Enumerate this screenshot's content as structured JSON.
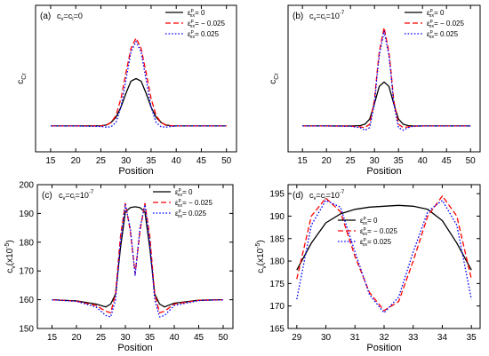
{
  "chart_data": [
    {
      "type": "line",
      "panel_label": "(a)",
      "condition": "c",
      "condition_parts": [
        {
          "t": "c"
        },
        {
          "t": "v",
          "sub": true
        },
        {
          "t": "=c"
        },
        {
          "t": "i",
          "sub": true
        },
        {
          "t": "=0"
        }
      ],
      "xlabel": "Position",
      "ylabel": "c",
      "ylabel_sub": "Cr",
      "xlim": [
        12,
        52
      ],
      "ylim": [
        0.1,
        0.95
      ],
      "xticks": [
        15,
        20,
        25,
        30,
        35,
        40,
        45,
        50
      ],
      "yticks": [],
      "legend_position": "top-right",
      "series": [
        {
          "legend": {
            "base": "ε",
            "sup": "p",
            "sub": "xx",
            "value": "= 0"
          },
          "color": "#000000",
          "dash": "solid",
          "x": [
            15,
            20,
            25,
            26,
            27,
            28,
            29,
            30,
            31,
            32,
            33,
            34,
            35,
            36,
            37,
            38,
            39,
            40,
            45,
            50
          ],
          "y": [
            0.25,
            0.25,
            0.251,
            0.255,
            0.27,
            0.3,
            0.36,
            0.44,
            0.51,
            0.525,
            0.51,
            0.44,
            0.36,
            0.3,
            0.27,
            0.255,
            0.251,
            0.25,
            0.25,
            0.25
          ]
        },
        {
          "legend": {
            "base": "ε",
            "sup": "p",
            "sub": "xx",
            "value": "= − 0.025"
          },
          "color": "#ff0000",
          "dash": "dashed",
          "x": [
            15,
            20,
            25,
            26,
            27,
            28,
            29,
            30,
            31,
            32,
            33,
            34,
            35,
            36,
            37,
            38,
            40,
            45,
            50
          ],
          "y": [
            0.25,
            0.25,
            0.25,
            0.253,
            0.27,
            0.31,
            0.41,
            0.56,
            0.7,
            0.76,
            0.7,
            0.56,
            0.41,
            0.31,
            0.27,
            0.253,
            0.25,
            0.25,
            0.25
          ]
        },
        {
          "legend": {
            "base": "ε",
            "sup": "p",
            "sub": "xx",
            "value": "= 0.025"
          },
          "color": "#0000ff",
          "dash": "dotted",
          "x": [
            15,
            20,
            25,
            26,
            27,
            28,
            29,
            30,
            31,
            32,
            33,
            34,
            35,
            36,
            37,
            38,
            39,
            40,
            45,
            50
          ],
          "y": [
            0.25,
            0.25,
            0.247,
            0.243,
            0.245,
            0.27,
            0.36,
            0.52,
            0.68,
            0.74,
            0.68,
            0.52,
            0.36,
            0.27,
            0.245,
            0.243,
            0.247,
            0.25,
            0.25,
            0.25
          ]
        }
      ]
    },
    {
      "type": "line",
      "panel_label": "(b)",
      "condition": "c",
      "condition_parts": [
        {
          "t": "c"
        },
        {
          "t": "v",
          "sub": true
        },
        {
          "t": "=c"
        },
        {
          "t": "i",
          "sub": true
        },
        {
          "t": "=10"
        },
        {
          "t": "-7",
          "sup": true
        }
      ],
      "xlabel": "Position",
      "ylabel": "c",
      "ylabel_sub": "Cr",
      "xlim": [
        12,
        52
      ],
      "ylim": [
        0.1,
        0.95
      ],
      "xticks": [
        15,
        20,
        25,
        30,
        35,
        40,
        45,
        50
      ],
      "yticks": [],
      "legend_position": "top-right",
      "series": [
        {
          "legend": {
            "base": "ε",
            "sup": "p",
            "sub": "xx",
            "value": "= 0"
          },
          "color": "#000000",
          "dash": "solid",
          "x": [
            15,
            20,
            25,
            27,
            28,
            29,
            30,
            31,
            32,
            33,
            34,
            35,
            36,
            37,
            38,
            40,
            45,
            50
          ],
          "y": [
            0.25,
            0.25,
            0.25,
            0.252,
            0.26,
            0.29,
            0.38,
            0.48,
            0.505,
            0.48,
            0.38,
            0.29,
            0.26,
            0.252,
            0.25,
            0.25,
            0.25,
            0.25
          ]
        },
        {
          "legend": {
            "base": "ε",
            "sup": "p",
            "sub": "xx",
            "value": "= − 0.025"
          },
          "color": "#ff0000",
          "dash": "dashed",
          "x": [
            15,
            20,
            25,
            27,
            28,
            29,
            30,
            30.5,
            31,
            32,
            33,
            33.5,
            34,
            35,
            36,
            37,
            38,
            40,
            45,
            50
          ],
          "y": [
            0.25,
            0.25,
            0.249,
            0.245,
            0.24,
            0.26,
            0.4,
            0.55,
            0.68,
            0.82,
            0.68,
            0.55,
            0.4,
            0.26,
            0.24,
            0.245,
            0.249,
            0.25,
            0.25,
            0.25
          ]
        },
        {
          "legend": {
            "base": "ε",
            "sup": "p",
            "sub": "xx",
            "value": "= 0.025"
          },
          "color": "#0000ff",
          "dash": "dotted",
          "x": [
            15,
            20,
            25,
            27,
            28,
            29,
            30,
            30.5,
            31,
            32,
            33,
            33.5,
            34,
            35,
            36,
            37,
            38,
            40,
            45,
            50
          ],
          "y": [
            0.25,
            0.25,
            0.248,
            0.24,
            0.225,
            0.24,
            0.38,
            0.53,
            0.66,
            0.8,
            0.66,
            0.53,
            0.38,
            0.24,
            0.225,
            0.24,
            0.248,
            0.25,
            0.25,
            0.25
          ]
        }
      ]
    },
    {
      "type": "line",
      "panel_label": "(c)",
      "condition": "c",
      "condition_parts": [
        {
          "t": "c"
        },
        {
          "t": "v",
          "sub": true
        },
        {
          "t": "=c"
        },
        {
          "t": "i",
          "sub": true
        },
        {
          "t": "=10"
        },
        {
          "t": "-7",
          "sup": true
        }
      ],
      "xlabel": "Position",
      "ylabel": "c",
      "ylabel_sub": "v",
      "ylabel_unit": "(x10",
      "ylabel_unit_sup": "-5",
      "ylabel_unit_end": ")",
      "xlim": [
        12,
        52
      ],
      "ylim": [
        150,
        200
      ],
      "xticks": [
        15,
        20,
        25,
        30,
        35,
        40,
        45,
        50
      ],
      "yticks": [
        150,
        160,
        170,
        180,
        190,
        200
      ],
      "legend_position": "top-right",
      "series": [
        {
          "legend": {
            "base": "ε",
            "sup": "p",
            "sub": "xx",
            "value": "= 0"
          },
          "color": "#000000",
          "dash": "solid",
          "x": [
            15,
            20,
            24,
            26,
            27,
            28,
            29,
            30,
            31,
            32,
            33,
            34,
            35,
            36,
            37,
            38,
            40,
            45,
            50
          ],
          "y": [
            160,
            159.6,
            158.5,
            157.5,
            158.5,
            162,
            178,
            190.5,
            192,
            192.3,
            192,
            190.5,
            178,
            162,
            158.5,
            157.5,
            158.8,
            159.8,
            160
          ]
        },
        {
          "legend": {
            "base": "ε",
            "sup": "p",
            "sub": "xx",
            "value": "= − 0.025"
          },
          "color": "#ff0000",
          "dash": "dashed",
          "x": [
            15,
            20,
            24,
            26,
            27,
            28,
            29,
            30,
            31,
            32,
            33,
            34,
            35,
            36,
            37,
            38,
            40,
            45,
            50
          ],
          "y": [
            160,
            159.5,
            158,
            156,
            155.5,
            162,
            182,
            193.5,
            184,
            169,
            184,
            193.5,
            182,
            162,
            155.5,
            156,
            158.5,
            159.8,
            160
          ]
        },
        {
          "legend": {
            "base": "ε",
            "sup": "p",
            "sub": "xx",
            "value": "= 0.025"
          },
          "color": "#0000ff",
          "dash": "dotted",
          "x": [
            15,
            20,
            24,
            26,
            27,
            28,
            29,
            30,
            31,
            32,
            33,
            34,
            35,
            36,
            37,
            38,
            40,
            45,
            50
          ],
          "y": [
            160,
            159.4,
            157.5,
            154.5,
            154,
            160,
            180,
            193,
            185,
            168.5,
            185,
            193,
            180,
            160,
            154,
            154.5,
            158,
            159.7,
            160
          ]
        }
      ]
    },
    {
      "type": "line",
      "panel_label": "(d)",
      "condition": "c",
      "condition_parts": [
        {
          "t": "c"
        },
        {
          "t": "v",
          "sub": true
        },
        {
          "t": "=c"
        },
        {
          "t": "i",
          "sub": true
        },
        {
          "t": "=10"
        },
        {
          "t": "-7",
          "sup": true
        }
      ],
      "xlabel": "Position",
      "ylabel": "c",
      "ylabel_sub": "v",
      "ylabel_unit": "(x10",
      "ylabel_unit_sup": "-5",
      "ylabel_unit_end": ")",
      "xlim": [
        28.7,
        35.3
      ],
      "ylim": [
        165,
        197
      ],
      "xticks": [
        29,
        30,
        31,
        32,
        33,
        34,
        35
      ],
      "yticks": [
        165,
        170,
        175,
        180,
        185,
        190,
        195
      ],
      "legend_position": "top-center",
      "series": [
        {
          "legend": {
            "base": "ε",
            "sup": "p",
            "sub": "xx",
            "value": "= 0"
          },
          "color": "#000000",
          "dash": "solid",
          "x": [
            29,
            29.5,
            30,
            30.5,
            31,
            31.5,
            32,
            32.5,
            33,
            33.5,
            34,
            34.5,
            35
          ],
          "y": [
            178,
            184,
            188.5,
            190.5,
            191.5,
            192,
            192.2,
            192.4,
            192.2,
            191.5,
            189,
            184,
            178
          ]
        },
        {
          "legend": {
            "base": "ε",
            "sup": "p",
            "sub": "xx",
            "value": "= − 0.025"
          },
          "color": "#ff0000",
          "dash": "dashed",
          "x": [
            29,
            29.5,
            30,
            30.5,
            31,
            31.5,
            32,
            32.5,
            33,
            33.5,
            34,
            34.5,
            35
          ],
          "y": [
            176,
            190,
            194,
            191,
            181,
            173,
            169,
            171,
            180,
            190,
            194.5,
            190,
            176
          ]
        },
        {
          "legend": {
            "base": "ε",
            "sup": "p",
            "sub": "xx",
            "value": "= 0.025"
          },
          "color": "#0000ff",
          "dash": "dotted",
          "x": [
            29,
            29.5,
            30,
            30.5,
            31,
            31.5,
            32,
            32.5,
            33,
            33.5,
            34,
            34.5,
            35
          ],
          "y": [
            171.5,
            188,
            193.5,
            192,
            182,
            172.5,
            168.5,
            172,
            182,
            191,
            193.5,
            188,
            171.5
          ]
        }
      ]
    }
  ]
}
